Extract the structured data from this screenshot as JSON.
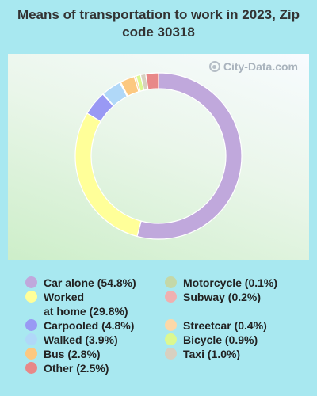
{
  "title": "Means of transportation to work in 2023, Zip code 30318",
  "watermark": "City-Data.com",
  "chart_data": {
    "type": "pie",
    "style": "donut",
    "slices": [
      {
        "label": "Car alone",
        "value": 54.8,
        "color": "#c0a8dc",
        "legend": "Car alone (54.8%)"
      },
      {
        "label": "Worked at home",
        "value": 29.8,
        "color": "#ffff99",
        "legend": "Worked\nat home (29.8%)"
      },
      {
        "label": "Carpooled",
        "value": 4.8,
        "color": "#9999f4",
        "legend": "Carpooled (4.8%)"
      },
      {
        "label": "Motorcycle",
        "value": 0.1,
        "color": "#c4d8a8",
        "legend": "Motorcycle (0.1%)"
      },
      {
        "label": "Walked",
        "value": 3.9,
        "color": "#b0d8f8",
        "legend": "Walked (3.9%)"
      },
      {
        "label": "Subway",
        "value": 0.2,
        "color": "#f0b0b0",
        "legend": "Subway (0.2%)"
      },
      {
        "label": "Bus",
        "value": 2.8,
        "color": "#fcc880",
        "legend": "Bus (2.8%)"
      },
      {
        "label": "Streetcar",
        "value": 0.4,
        "color": "#fcd8a8",
        "legend": "Streetcar (0.4%)"
      },
      {
        "label": "Bicycle",
        "value": 0.9,
        "color": "#dcf890",
        "legend": "Bicycle (0.9%)"
      },
      {
        "label": "Taxi",
        "value": 1.0,
        "color": "#d8d0c0",
        "legend": "Taxi (1.0%)"
      },
      {
        "label": "Other",
        "value": 2.5,
        "color": "#e88888",
        "legend": "Other (2.5%)"
      }
    ]
  }
}
